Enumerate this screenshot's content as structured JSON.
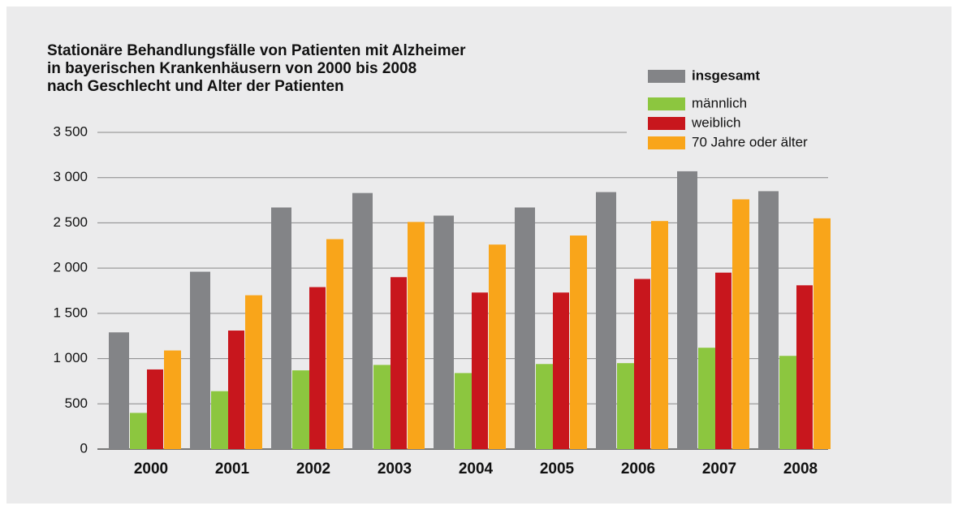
{
  "chart_data": {
    "type": "bar",
    "title": [
      "Stationäre Behandlungsfälle von Patienten mit Alzheimer",
      "in bayerischen Krankenhäusern von 2000 bis 2008",
      "nach Geschlecht und Alter der Patienten"
    ],
    "categories": [
      "2000",
      "2001",
      "2002",
      "2003",
      "2004",
      "2005",
      "2006",
      "2007",
      "2008"
    ],
    "series": [
      {
        "name": "insgesamt",
        "color": "#838487",
        "values": [
          1290,
          1960,
          2670,
          2830,
          2580,
          2670,
          2840,
          3070,
          2850
        ]
      },
      {
        "name": "männlich",
        "color": "#8cc63f",
        "values": [
          400,
          640,
          870,
          930,
          840,
          940,
          950,
          1120,
          1030
        ]
      },
      {
        "name": "weiblich",
        "color": "#c8161d",
        "values": [
          880,
          1310,
          1790,
          1900,
          1730,
          1730,
          1880,
          1950,
          1810
        ]
      },
      {
        "name": "70 Jahre oder älter",
        "color": "#f9a51a",
        "values": [
          1090,
          1700,
          2320,
          2510,
          2260,
          2360,
          2520,
          2760,
          2550
        ]
      }
    ],
    "ylim": [
      0,
      3500
    ],
    "yticks": [
      0,
      500,
      {
        "value": 1000,
        "label": "1 000"
      },
      {
        "value": 1500,
        "label": "1 500"
      },
      {
        "value": 2000,
        "label": "2 000"
      },
      {
        "value": 2500,
        "label": "2 500"
      },
      {
        "value": 3000,
        "label": "3 000"
      },
      {
        "value": 3500,
        "label": "3 500"
      }
    ],
    "grid": true
  }
}
